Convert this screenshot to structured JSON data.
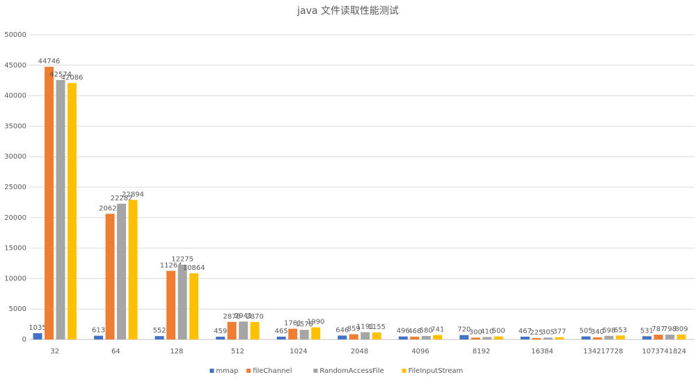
{
  "chart_data": {
    "type": "bar",
    "title": "java 文件读取性能测试",
    "categories": [
      "32",
      "64",
      "128",
      "512",
      "1024",
      "2048",
      "4096",
      "8192",
      "16384",
      "134217728",
      "1073741824"
    ],
    "series": [
      {
        "name": "mmap",
        "color": "#4472c4",
        "values": [
          1035,
          613,
          552,
          459,
          465,
          646,
          496,
          720,
          467,
          505,
          531
        ]
      },
      {
        "name": "fileChannel",
        "color": "#ed7d31",
        "values": [
          44746,
          20626,
          11264,
          2878,
          1761,
          859,
          466,
          300,
          225,
          340,
          787
        ]
      },
      {
        "name": "RandomAccessFile",
        "color": "#a5a5a5",
        "values": [
          42574,
          22282,
          12275,
          2941,
          1578,
          1191,
          580,
          410,
          305,
          598,
          798
        ]
      },
      {
        "name": "FileInputStream",
        "color": "#ffc000",
        "values": [
          42086,
          22894,
          10864,
          2870,
          1990,
          1155,
          741,
          500,
          377,
          653,
          809
        ]
      }
    ],
    "ylim": [
      0,
      50000
    ],
    "yticks": [
      0,
      5000,
      10000,
      15000,
      20000,
      25000,
      30000,
      35000,
      40000,
      45000,
      50000
    ],
    "grid": true,
    "legend": "bottom"
  }
}
